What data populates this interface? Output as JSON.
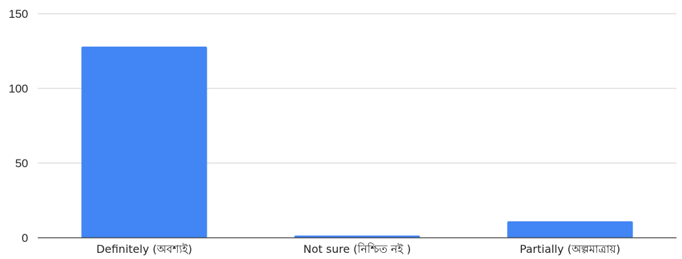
{
  "chart_data": {
    "type": "bar",
    "categories": [
      "Definitely (অবশ্যই)",
      "Not sure (নিশ্চিত নই )",
      "Partially (অল্পমাত্রায়)"
    ],
    "values": [
      128,
      1.5,
      11
    ],
    "ylim": [
      0,
      150
    ],
    "yticks": [
      0,
      50,
      100,
      150
    ],
    "grid": true,
    "bar_color": "#4285f4",
    "grid_color": "#cccccc",
    "axis_color": "#333333"
  }
}
